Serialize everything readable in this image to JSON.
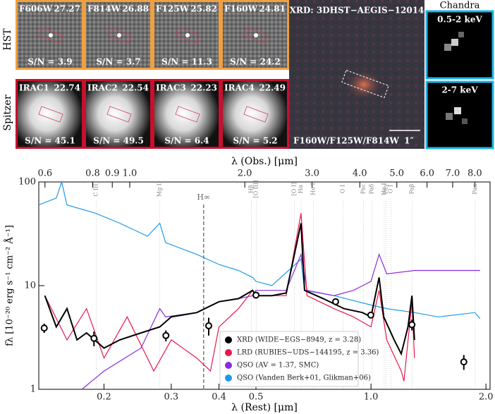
{
  "panels": {
    "hst_label": "HST",
    "spitzer_label": "Spitzer",
    "hst": [
      {
        "filter": "F606W",
        "mag": 27.27,
        "snr": "S/N = 3.9"
      },
      {
        "filter": "F814W",
        "mag": 26.88,
        "snr": "S/N = 3.7"
      },
      {
        "filter": "F125W",
        "mag": 25.82,
        "snr": "S/N = 11.3"
      },
      {
        "filter": "F160W",
        "mag": 24.81,
        "snr": "S/N = 24.2"
      }
    ],
    "spitzer": [
      {
        "filter": "IRAC1",
        "mag": 22.74,
        "snr": "S/N = 45.1"
      },
      {
        "filter": "IRAC2",
        "mag": 22.54,
        "snr": "S/N = 49.5"
      },
      {
        "filter": "IRAC3",
        "mag": 22.23,
        "snr": "S/N = 6.4"
      },
      {
        "filter": "IRAC4",
        "mag": 22.49,
        "snr": "S/N = 5.2"
      }
    ],
    "xrd_title": "XRD: 3DHST−AEGIS−12014",
    "xrd_filters": "F160W/F125W/F814W",
    "xrd_scale": "1″",
    "chandra_title": "Chandra",
    "chandra_soft": "0.5-2 keV",
    "chandra_hard": "2-7 keV"
  },
  "chart_data": {
    "type": "line",
    "xlabel": "λ (Rest) [μm]",
    "x2label": "λ (Obs.) [μm]",
    "ylabel": "fλ [10⁻²⁰ erg s⁻¹ cm⁻² Å⁻¹]",
    "xscale": "log",
    "yscale": "log",
    "xlim": [
      0.135,
      2.05
    ],
    "x2lim": [
      0.578,
      8.77
    ],
    "ylim": [
      1,
      100
    ],
    "xticks": [
      0.2,
      0.3,
      0.4,
      0.5,
      {
        "value": 1,
        "label": "1.0"
      },
      {
        "value": 2,
        "label": "2.0"
      }
    ],
    "x2ticks": [
      0.6,
      0.8,
      0.9,
      {
        "value": 1,
        "label": "1.0"
      },
      {
        "value": 2,
        "label": "2.0"
      },
      {
        "value": 3,
        "label": "3.0"
      },
      {
        "value": 4,
        "label": "4.0"
      },
      {
        "value": 5,
        "label": "5.0"
      },
      {
        "value": 6,
        "label": "6.0"
      },
      {
        "value": 7,
        "label": "7.0"
      },
      {
        "value": 8,
        "label": "8.0"
      }
    ],
    "yticks": [
      1,
      10,
      100
    ],
    "line_labels": [
      {
        "label": "C III]",
        "x": 0.1909
      },
      {
        "label": "Mg II",
        "x": 0.28
      },
      {
        "label": "H∞",
        "x": 0.3646,
        "dashed": true
      },
      {
        "label": "Hβ",
        "x": 0.4861
      },
      {
        "label": "[O III]",
        "x": 0.5007
      },
      {
        "label": "[O I]",
        "x": 0.63
      },
      {
        "label": "Hα",
        "x": 0.6563
      },
      {
        "label": "He I",
        "x": 0.7065
      },
      {
        "label": "O I",
        "x": 0.8446
      },
      {
        "label": "Paε",
        "x": 0.955
      },
      {
        "label": "Paδ",
        "x": 1.005
      },
      {
        "label": "He I",
        "x": 1.083
      },
      {
        "label": "Paγ",
        "x": 1.094
      },
      {
        "label": "O I",
        "x": 1.129
      },
      {
        "label": "Paβ",
        "x": 1.282
      },
      {
        "label": "Paα",
        "x": 1.875
      }
    ],
    "series": [
      {
        "name": "QSO (Vanden Berk+01, Glikman+06)",
        "color": "#1e9be8",
        "x": [
          0.135,
          0.15,
          0.155,
          0.16,
          0.19,
          0.22,
          0.26,
          0.28,
          0.29,
          0.35,
          0.4,
          0.45,
          0.49,
          0.5,
          0.55,
          0.656,
          0.67,
          0.8,
          1.0,
          1.1,
          1.3,
          1.5,
          1.87,
          1.93
        ],
        "values": [
          60,
          70,
          100,
          60,
          50,
          40,
          30,
          40,
          26,
          20,
          16,
          14,
          12,
          11,
          10,
          18,
          9,
          8,
          6.5,
          6,
          5.5,
          5,
          5.5,
          4.8
        ]
      },
      {
        "name": "QSO (AV = 1.37, SMC)",
        "color": "#8a2be2",
        "x": [
          0.175,
          0.2,
          0.25,
          0.28,
          0.29,
          0.35,
          0.4,
          0.45,
          0.49,
          0.5,
          0.6,
          0.656,
          0.68,
          0.8,
          0.9,
          1.0,
          1.05,
          1.1,
          1.3,
          1.5,
          1.93
        ],
        "values": [
          1,
          1.5,
          2.5,
          6,
          5,
          5.5,
          7,
          7.5,
          8,
          9,
          9,
          20,
          9,
          8,
          9,
          11,
          20,
          13,
          14,
          14,
          14
        ]
      },
      {
        "name": "LRD (RUBIES−UDS−144195, z = 3.36)",
        "color": "#e8174a",
        "x": [
          0.14,
          0.16,
          0.18,
          0.2,
          0.23,
          0.27,
          0.3,
          0.35,
          0.38,
          0.4,
          0.45,
          0.49,
          0.5,
          0.6,
          0.656,
          0.68,
          0.8,
          0.9,
          1.0,
          1.05,
          1.1,
          1.2,
          1.22,
          1.28,
          1.3
        ],
        "values": [
          8,
          3,
          6,
          2,
          5,
          1.5,
          3,
          2,
          1.5,
          4,
          6,
          9,
          8,
          8,
          50,
          8,
          6,
          5,
          4,
          9,
          3,
          1.5,
          1.2,
          7,
          2
        ]
      },
      {
        "name": "XRD (WIDE−EGS−8949, z = 3.28)",
        "color": "#000000",
        "x": [
          0.14,
          0.15,
          0.16,
          0.17,
          0.18,
          0.2,
          0.22,
          0.25,
          0.28,
          0.3,
          0.35,
          0.4,
          0.45,
          0.49,
          0.5,
          0.55,
          0.6,
          0.656,
          0.67,
          0.75,
          0.85,
          0.95,
          1.0,
          1.05,
          1.08,
          1.15,
          1.2,
          1.25,
          1.28,
          1.3
        ],
        "values": [
          8,
          4,
          6,
          3,
          3.5,
          2.5,
          3,
          3.5,
          4,
          5,
          5.5,
          7,
          7.5,
          9,
          8,
          8,
          8.5,
          40,
          9,
          7.5,
          6,
          5.5,
          5,
          12,
          5,
          3,
          2.2,
          4,
          8,
          3
        ]
      }
    ],
    "photometry": {
      "x": [
        0.1395,
        0.1883,
        0.2905,
        0.376,
        0.5,
        0.808,
        0.999,
        1.28,
        1.75
      ],
      "values": [
        3.9,
        3.1,
        3.3,
        4.1,
        8.1,
        7.0,
        5.2,
        4.2,
        1.84
      ],
      "errors": [
        0.4,
        0.5,
        0.4,
        0.8,
        0.5,
        0.3,
        0.3,
        0.5,
        0.3
      ]
    }
  }
}
